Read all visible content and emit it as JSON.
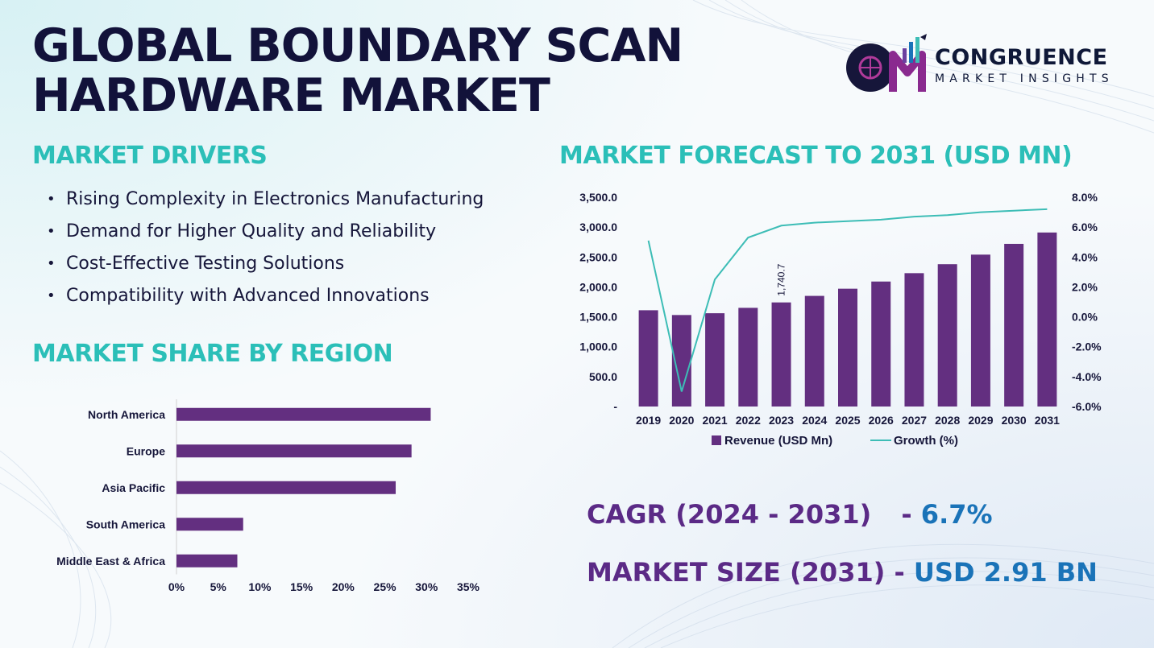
{
  "title": "GLOBAL BOUNDARY SCAN HARDWARE MARKET",
  "logo": {
    "name": "CONGRUENCE",
    "subtitle": "MARKET INSIGHTS"
  },
  "drivers": {
    "title": "MARKET DRIVERS",
    "items": [
      "Rising Complexity in Electronics Manufacturing",
      "Demand for Higher Quality and Reliability",
      "Cost-Effective Testing Solutions",
      "Compatibility with Advanced Innovations"
    ]
  },
  "region": {
    "title": "MARKET SHARE BY REGION"
  },
  "forecast": {
    "title": "MARKET FORECAST TO 2031 (USD MN)"
  },
  "stats": {
    "cagr_label": "CAGR (2024 - 2031)",
    "cagr_sep": "-",
    "cagr_value": "6.7%",
    "size_label": "MARKET SIZE (2031)",
    "size_sep": "-",
    "size_value": "USD 2.91 BN"
  },
  "colors": {
    "bar": "#632f80",
    "line": "#3dbdb6",
    "heading": "#2bbfb8",
    "title": "#12123a"
  },
  "chart_data": [
    {
      "type": "bar",
      "orientation": "horizontal",
      "categories": [
        "North America",
        "Europe",
        "Asia Pacific",
        "South America",
        "Middle East & Africa"
      ],
      "values": [
        30.5,
        28.2,
        26.3,
        8.0,
        7.3
      ],
      "xlim": [
        0,
        35
      ],
      "xticks": [
        "0%",
        "5%",
        "10%",
        "15%",
        "20%",
        "25%",
        "30%",
        "35%"
      ],
      "grid": false
    },
    {
      "type": "bar",
      "categories": [
        "2019",
        "2020",
        "2021",
        "2022",
        "2023",
        "2024",
        "2025",
        "2026",
        "2027",
        "2028",
        "2029",
        "2030",
        "2031"
      ],
      "series": [
        {
          "name": "Revenue (USD Mn)",
          "type": "bar",
          "axis": "left",
          "values": [
            1610,
            1530,
            1560,
            1650,
            1740.7,
            1850,
            1970,
            2090,
            2230,
            2380,
            2540,
            2720,
            2910
          ]
        },
        {
          "name": "Growth (%)",
          "type": "line",
          "axis": "right",
          "values": [
            5.1,
            -5.0,
            2.5,
            5.3,
            6.1,
            6.3,
            6.4,
            6.5,
            6.7,
            6.8,
            7.0,
            7.1,
            7.2
          ]
        }
      ],
      "data_labels": [
        {
          "category": "2023",
          "text": "1,740.7"
        }
      ],
      "ylim_left": [
        0,
        3500
      ],
      "yticks_left": [
        "-",
        "500.0",
        "1,000.0",
        "1,500.0",
        "2,000.0",
        "2,500.0",
        "3,000.0",
        "3,500.0"
      ],
      "ylim_right": [
        -6,
        8
      ],
      "yticks_right": [
        "-6.0%",
        "-4.0%",
        "-2.0%",
        "0.0%",
        "2.0%",
        "4.0%",
        "6.0%",
        "8.0%"
      ],
      "legend": {
        "position": "bottom",
        "entries": [
          "Revenue (USD Mn)",
          "Growth (%)"
        ]
      },
      "grid": false
    }
  ]
}
